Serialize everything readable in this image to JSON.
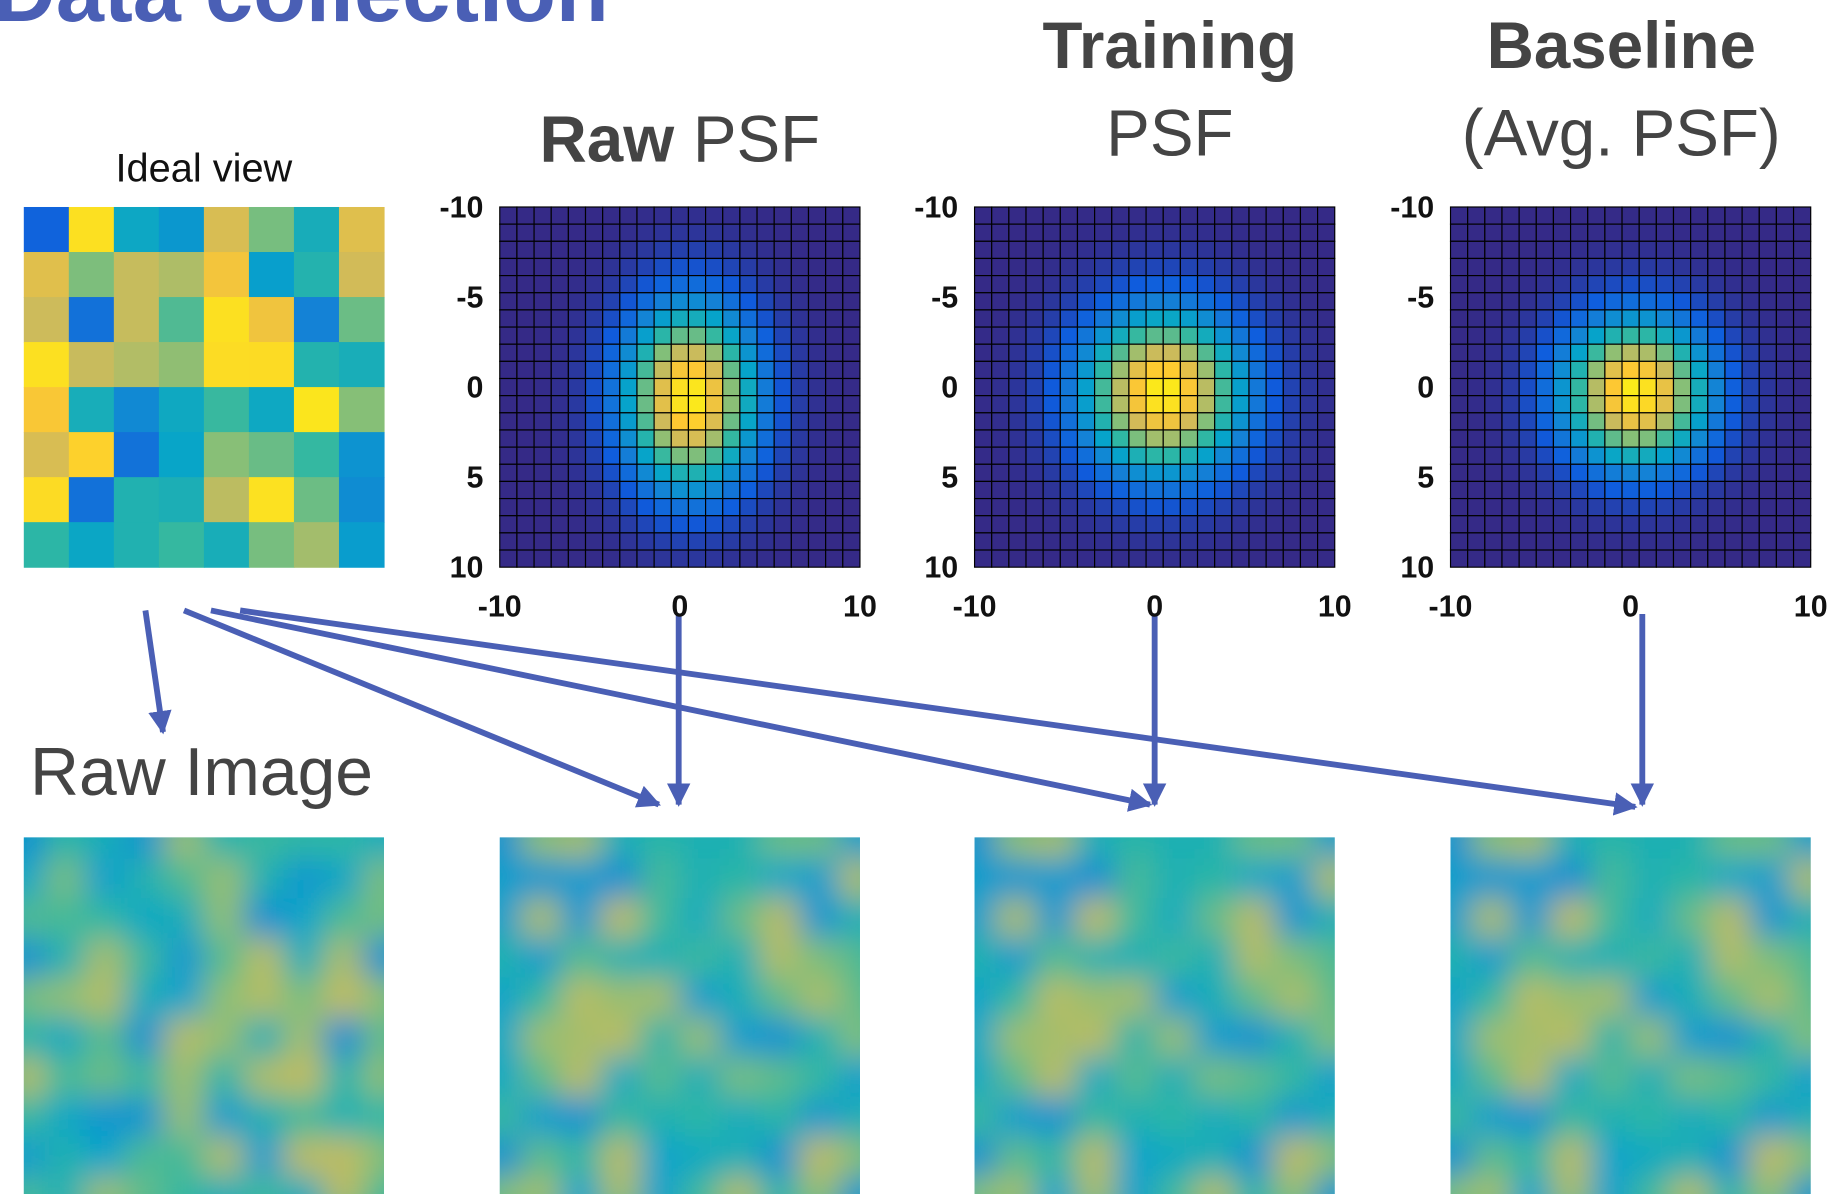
{
  "title": "Data collection",
  "ideal_view": "Ideal view",
  "psf_panels": [
    {
      "title_bold": "Raw",
      "title": "PSF"
    },
    {
      "title_bold": "Training",
      "title": "PSF"
    },
    {
      "title_bold": "Baseline",
      "title": "(Avg. PSF)"
    }
  ],
  "psf_axes": {
    "yticks": [
      -10,
      -5,
      0,
      5,
      10
    ],
    "xticks": [
      -10,
      0,
      10
    ]
  },
  "raw_image": "Raw Image"
}
